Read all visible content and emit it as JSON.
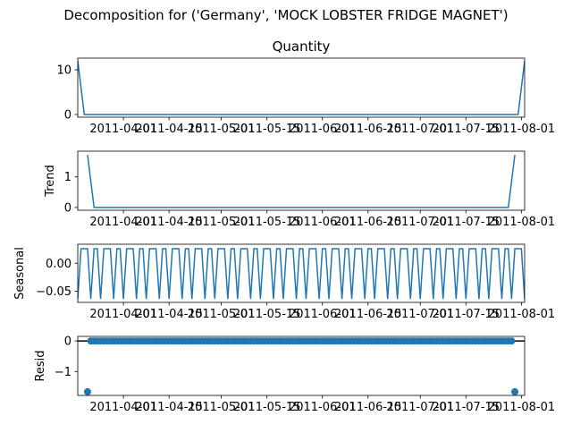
{
  "figure_title": "Decomposition for ('Germany', 'MOCK LOBSTER FRIDGE MAGNET')",
  "colors": {
    "series": "#1f77b4",
    "axis": "#000000",
    "background": "#ffffff"
  },
  "chart_data": [
    {
      "type": "line",
      "title": "Quantity",
      "ylabel": "",
      "x_start": "2011-03-18",
      "x_end": "2011-08-02",
      "ylim": [
        -0.6,
        12.6
      ],
      "yticks": [
        0,
        10
      ],
      "ytick_labels": [
        "0",
        "10"
      ],
      "xtick_dates": [
        "2011-04-01",
        "2011-04-15",
        "2011-05-01",
        "2011-05-15",
        "2011-06-01",
        "2011-06-15",
        "2011-07-01",
        "2011-07-15",
        "2011-08-01"
      ],
      "xtick_labels": [
        "2011-04-01",
        "2011-04-15",
        "2011-05-01",
        "2011-05-15",
        "2011-06-01",
        "2011-06-15",
        "2011-07-01",
        "2011-07-15",
        "2011-08-01"
      ],
      "series": [
        {
          "x": [
            "2011-03-18",
            "2011-03-20",
            "2011-07-31",
            "2011-08-02"
          ],
          "y": [
            12,
            0,
            0,
            12
          ]
        }
      ]
    },
    {
      "type": "line",
      "title": "",
      "ylabel": "Trend",
      "x_start": "2011-03-18",
      "x_end": "2011-08-02",
      "ylim": [
        -0.09,
        1.84
      ],
      "yticks": [
        0,
        1
      ],
      "ytick_labels": [
        "0",
        "1"
      ],
      "xtick_dates": [
        "2011-04-01",
        "2011-04-15",
        "2011-05-01",
        "2011-05-15",
        "2011-06-01",
        "2011-06-15",
        "2011-07-01",
        "2011-07-15",
        "2011-08-01"
      ],
      "xtick_labels": [
        "2011-04-01",
        "2011-04-15",
        "2011-05-01",
        "2011-05-15",
        "2011-06-01",
        "2011-06-15",
        "2011-07-01",
        "2011-07-15",
        "2011-08-01"
      ],
      "series": [
        {
          "x": [
            "2011-03-21",
            "2011-03-23",
            "2011-07-28",
            "2011-07-30"
          ],
          "y": [
            1.72,
            0,
            0,
            1.72
          ]
        }
      ]
    },
    {
      "type": "line",
      "title": "",
      "ylabel": "Seasonal",
      "x_start": "2011-03-18",
      "x_end": "2011-08-02",
      "ylim": [
        -0.07,
        0.034
      ],
      "yticks": [
        0.0,
        -0.05
      ],
      "ytick_labels": [
        "0.00",
        "−0.05"
      ],
      "xtick_dates": [
        "2011-04-01",
        "2011-04-15",
        "2011-05-01",
        "2011-05-15",
        "2011-06-01",
        "2011-06-15",
        "2011-07-01",
        "2011-07-15",
        "2011-08-01"
      ],
      "xtick_labels": [
        "2011-04-01",
        "2011-04-15",
        "2011-05-01",
        "2011-05-15",
        "2011-06-01",
        "2011-06-15",
        "2011-07-01",
        "2011-07-15",
        "2011-08-01"
      ],
      "pattern": [
        -0.064,
        0.026,
        0.026,
        0.026,
        -0.064,
        0.026,
        0.026
      ],
      "series": []
    },
    {
      "type": "scatter",
      "title": "",
      "ylabel": "Resid",
      "x_start": "2011-03-18",
      "x_end": "2011-08-02",
      "ylim": [
        -1.78,
        0.15
      ],
      "yticks": [
        0,
        -1
      ],
      "ytick_labels": [
        "0",
        "−1"
      ],
      "baseline": 0,
      "xtick_dates": [
        "2011-04-01",
        "2011-04-15",
        "2011-05-01",
        "2011-05-15",
        "2011-06-01",
        "2011-06-15",
        "2011-07-01",
        "2011-07-15",
        "2011-08-01"
      ],
      "xtick_labels": [
        "2011-04-01",
        "2011-04-15",
        "2011-05-01",
        "2011-05-15",
        "2011-06-01",
        "2011-06-15",
        "2011-07-01",
        "2011-07-15",
        "2011-08-01"
      ],
      "series": [
        {
          "x": [
            "2011-03-21",
            "2011-07-30"
          ],
          "y": [
            -1.66,
            -1.66
          ]
        }
      ]
    }
  ]
}
